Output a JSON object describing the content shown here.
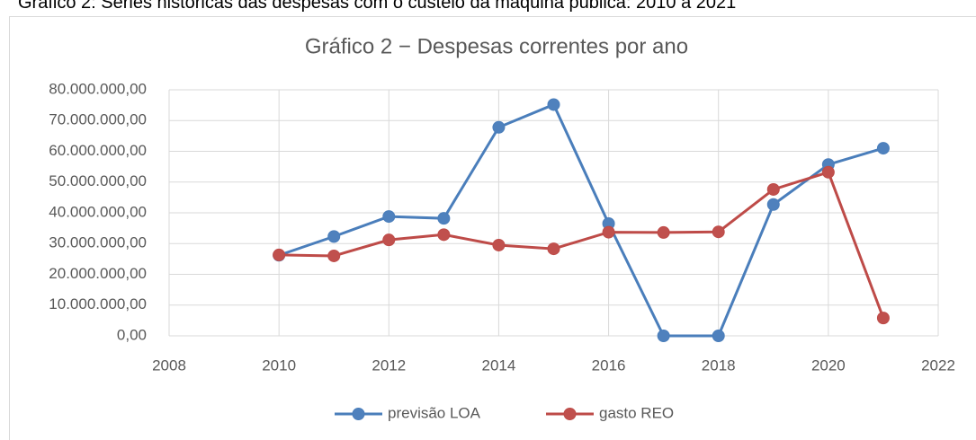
{
  "caption": "Gráfico 2: Séries históricas das despesas com o custeio da máquina pública: 2010 a 2021",
  "chart_data": {
    "type": "line",
    "title": "Gráfico 2 − Despesas correntes por ano",
    "x": [
      2010,
      2011,
      2012,
      2013,
      2014,
      2015,
      2016,
      2017,
      2018,
      2019,
      2020,
      2021
    ],
    "series": [
      {
        "name": "previsão LOA",
        "color": "#4a7ebb",
        "marker_color": "#4f81bd",
        "values": [
          26200000,
          32300000,
          38800000,
          38200000,
          67800000,
          75200000,
          36500000,
          0,
          0,
          42700000,
          55700000,
          61000000
        ]
      },
      {
        "name": "gasto REO",
        "color": "#be4b48",
        "marker_color": "#c0504d",
        "values": [
          26300000,
          26000000,
          31200000,
          32900000,
          29500000,
          28300000,
          33700000,
          33600000,
          33800000,
          47600000,
          53200000,
          5800000
        ]
      }
    ],
    "xlim": [
      2008,
      2022
    ],
    "xticks": [
      2008,
      2010,
      2012,
      2014,
      2016,
      2018,
      2020,
      2022
    ],
    "ylim": [
      0,
      80000000
    ],
    "yticks": [
      {
        "value": 0,
        "label": "0,00"
      },
      {
        "value": 10000000,
        "label": "10.000.000,00"
      },
      {
        "value": 20000000,
        "label": "20.000.000,00"
      },
      {
        "value": 30000000,
        "label": "30.000.000,00"
      },
      {
        "value": 40000000,
        "label": "40.000.000,00"
      },
      {
        "value": 50000000,
        "label": "50.000.000,00"
      },
      {
        "value": 60000000,
        "label": "60.000.000,00"
      },
      {
        "value": 70000000,
        "label": "70.000.000,00"
      },
      {
        "value": 80000000,
        "label": "80.000.000,00"
      }
    ],
    "grid": true,
    "legend": "bottom"
  }
}
